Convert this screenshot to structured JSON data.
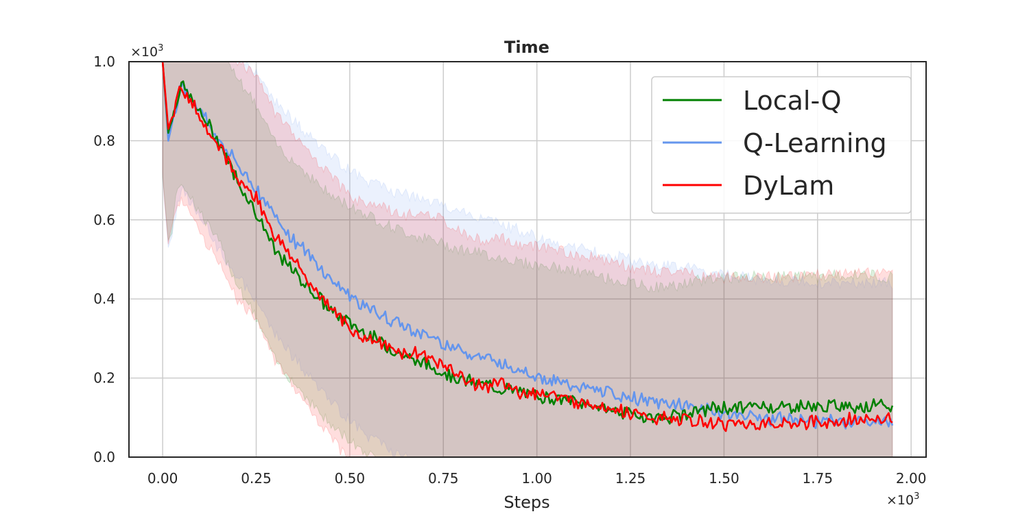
{
  "chart_data": {
    "type": "line",
    "title": "Time",
    "xlabel": "Steps",
    "ylabel": "",
    "x_multiplier": "×10",
    "x_multiplier_exp": "3",
    "y_multiplier": "×10",
    "y_multiplier_exp": "3",
    "xlim": [
      -0.09,
      2.04
    ],
    "ylim": [
      0.0,
      1.0
    ],
    "xticks": [
      0.0,
      0.25,
      0.5,
      0.75,
      1.0,
      1.25,
      1.5,
      1.75,
      2.0
    ],
    "xtick_labels": [
      "0.00",
      "0.25",
      "0.50",
      "0.75",
      "1.00",
      "1.25",
      "1.50",
      "1.75",
      "2.00"
    ],
    "yticks": [
      0.0,
      0.2,
      0.4,
      0.6,
      0.8,
      1.0
    ],
    "ytick_labels": [
      "0.0",
      "0.2",
      "0.4",
      "0.6",
      "0.8",
      "1.0"
    ],
    "grid": true,
    "legend_position": "top-right",
    "series": [
      {
        "name": "Local-Q",
        "color": "#008000",
        "x": [
          0.0,
          0.015,
          0.05,
          0.1,
          0.15,
          0.2,
          0.25,
          0.3,
          0.35,
          0.4,
          0.45,
          0.5,
          0.55,
          0.6,
          0.65,
          0.7,
          0.75,
          0.8,
          0.85,
          0.9,
          0.95,
          1.0,
          1.05,
          1.1,
          1.15,
          1.2,
          1.25,
          1.3,
          1.35,
          1.4,
          1.45,
          1.5,
          1.55,
          1.6,
          1.65,
          1.7,
          1.75,
          1.8,
          1.85,
          1.9,
          1.95
        ],
        "y": [
          1.0,
          0.82,
          0.945,
          0.87,
          0.8,
          0.7,
          0.62,
          0.52,
          0.47,
          0.42,
          0.37,
          0.34,
          0.31,
          0.28,
          0.255,
          0.235,
          0.215,
          0.195,
          0.185,
          0.175,
          0.165,
          0.155,
          0.15,
          0.14,
          0.13,
          0.12,
          0.11,
          0.1,
          0.1,
          0.11,
          0.12,
          0.125,
          0.125,
          0.13,
          0.125,
          0.13,
          0.125,
          0.13,
          0.13,
          0.13,
          0.125
        ]
      },
      {
        "name": "Q-Learning",
        "color": "#6495ed",
        "x": [
          0.0,
          0.015,
          0.05,
          0.1,
          0.15,
          0.2,
          0.25,
          0.3,
          0.35,
          0.4,
          0.45,
          0.5,
          0.55,
          0.6,
          0.65,
          0.7,
          0.75,
          0.8,
          0.85,
          0.9,
          0.95,
          1.0,
          1.05,
          1.1,
          1.15,
          1.2,
          1.25,
          1.3,
          1.35,
          1.4,
          1.45,
          1.5,
          1.55,
          1.6,
          1.65,
          1.7,
          1.75,
          1.8,
          1.85,
          1.9,
          1.95
        ],
        "y": [
          1.0,
          0.8,
          0.945,
          0.88,
          0.8,
          0.74,
          0.68,
          0.61,
          0.55,
          0.5,
          0.45,
          0.41,
          0.375,
          0.35,
          0.33,
          0.31,
          0.29,
          0.27,
          0.255,
          0.24,
          0.225,
          0.205,
          0.19,
          0.18,
          0.17,
          0.16,
          0.15,
          0.14,
          0.135,
          0.13,
          0.12,
          0.11,
          0.105,
          0.1,
          0.095,
          0.095,
          0.09,
          0.09,
          0.09,
          0.09,
          0.09
        ]
      },
      {
        "name": "DyLam",
        "color": "#ff0000",
        "x": [
          0.0,
          0.015,
          0.05,
          0.1,
          0.15,
          0.2,
          0.25,
          0.3,
          0.35,
          0.4,
          0.45,
          0.5,
          0.55,
          0.6,
          0.65,
          0.7,
          0.75,
          0.8,
          0.85,
          0.9,
          0.95,
          1.0,
          1.05,
          1.1,
          1.15,
          1.2,
          1.25,
          1.3,
          1.35,
          1.4,
          1.45,
          1.5,
          1.55,
          1.6,
          1.65,
          1.7,
          1.75,
          1.8,
          1.85,
          1.9,
          1.95
        ],
        "y": [
          1.0,
          0.83,
          0.94,
          0.86,
          0.79,
          0.7,
          0.66,
          0.56,
          0.5,
          0.43,
          0.38,
          0.32,
          0.3,
          0.28,
          0.26,
          0.26,
          0.235,
          0.2,
          0.18,
          0.185,
          0.165,
          0.165,
          0.155,
          0.14,
          0.135,
          0.125,
          0.11,
          0.1,
          0.095,
          0.095,
          0.085,
          0.085,
          0.085,
          0.085,
          0.085,
          0.085,
          0.09,
          0.09,
          0.095,
          0.095,
          0.095
        ]
      }
    ]
  }
}
